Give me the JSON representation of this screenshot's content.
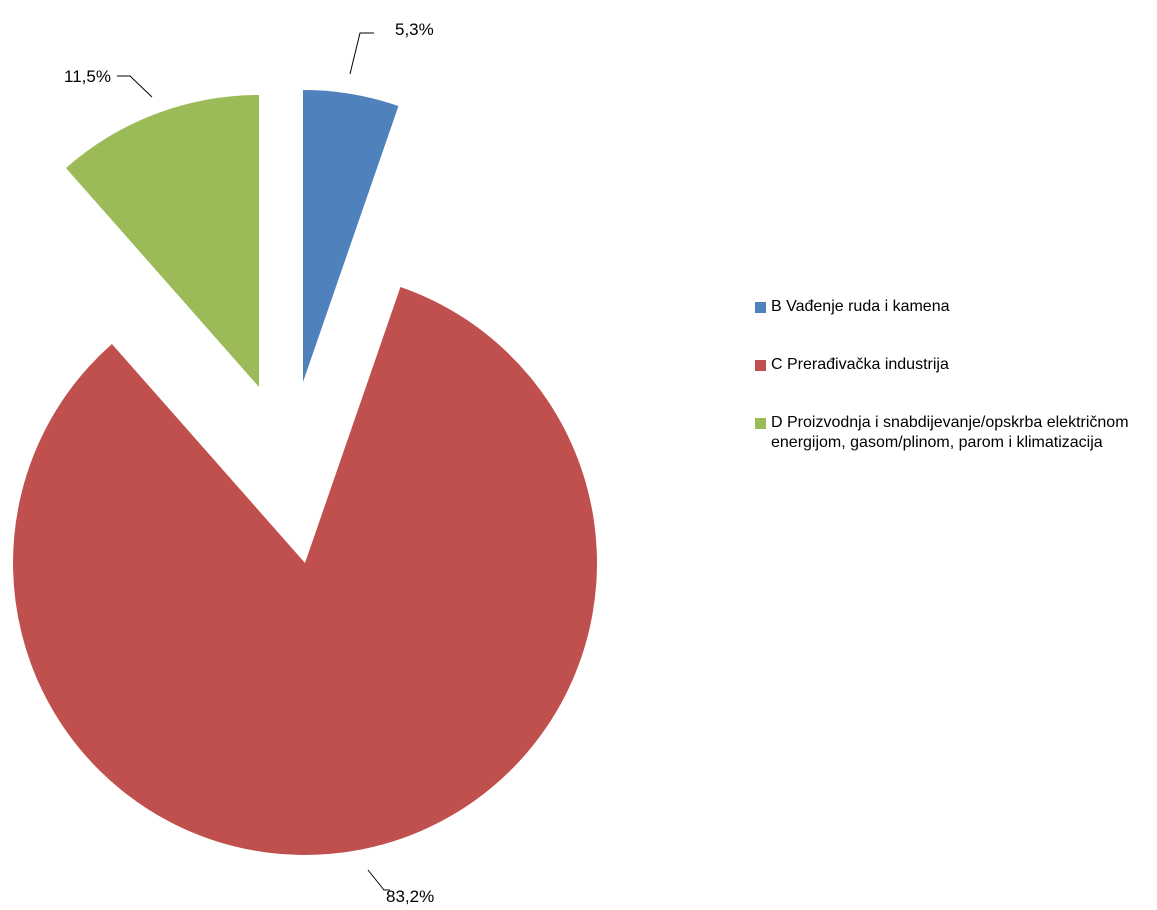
{
  "chart_data": {
    "type": "pie",
    "categories": [
      "B Vađenje ruda i kamena",
      "C Prerađivačka industrija",
      "D Proizvodnja i snabdijevanje/opskrba električnom energijom, gasom/plinom, parom i klimatizacija"
    ],
    "values": [
      5.3,
      83.2,
      11.5
    ],
    "data_labels": [
      "5,3%",
      "83,2%",
      "11,5%"
    ],
    "colors": [
      "#4F81BD",
      "#C0504D",
      "#9BBB59"
    ],
    "exploded": true,
    "legend_position": "right"
  }
}
